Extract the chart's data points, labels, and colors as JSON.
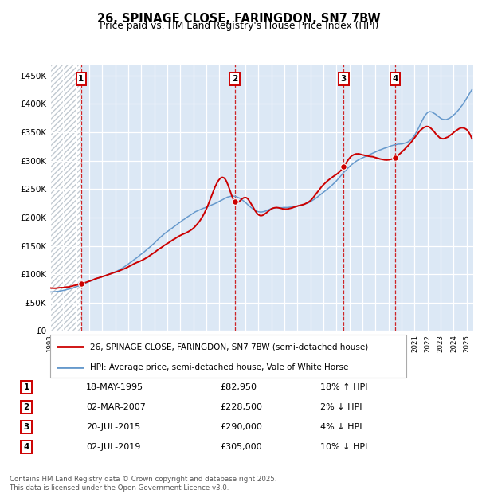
{
  "title1": "26, SPINAGE CLOSE, FARINGDON, SN7 7BW",
  "title2": "Price paid vs. HM Land Registry's House Price Index (HPI)",
  "legend1": "26, SPINAGE CLOSE, FARINGDON, SN7 7BW (semi-detached house)",
  "legend2": "HPI: Average price, semi-detached house, Vale of White Horse",
  "footnote": "Contains HM Land Registry data © Crown copyright and database right 2025.\nThis data is licensed under the Open Government Licence v3.0.",
  "sales": [
    {
      "num": 1,
      "year": 1995.38,
      "price": 82950,
      "date": "18-MAY-1995",
      "pct": "18%",
      "dir": "↑"
    },
    {
      "num": 2,
      "year": 2007.17,
      "price": 228500,
      "date": "02-MAR-2007",
      "pct": "2%",
      "dir": "↓"
    },
    {
      "num": 3,
      "year": 2015.55,
      "price": 290000,
      "date": "20-JUL-2015",
      "pct": "4%",
      "dir": "↓"
    },
    {
      "num": 4,
      "year": 2019.5,
      "price": 305000,
      "date": "02-JUL-2019",
      "pct": "10%",
      "dir": "↓"
    }
  ],
  "hpi_color": "#6699cc",
  "sale_color": "#cc0000",
  "chart_bg": "#dce8f5",
  "hatch_color": "#c0c8d0",
  "xlim": [
    1993,
    2025.5
  ],
  "ylim": [
    0,
    470000
  ],
  "yticks": [
    0,
    50000,
    100000,
    150000,
    200000,
    250000,
    300000,
    350000,
    400000,
    450000
  ],
  "xtick_years": [
    1993,
    1994,
    1995,
    1996,
    1997,
    1998,
    1999,
    2000,
    2001,
    2002,
    2003,
    2004,
    2005,
    2006,
    2007,
    2008,
    2009,
    2010,
    2011,
    2012,
    2013,
    2014,
    2015,
    2016,
    2017,
    2018,
    2019,
    2020,
    2021,
    2022,
    2023,
    2024,
    2025
  ]
}
